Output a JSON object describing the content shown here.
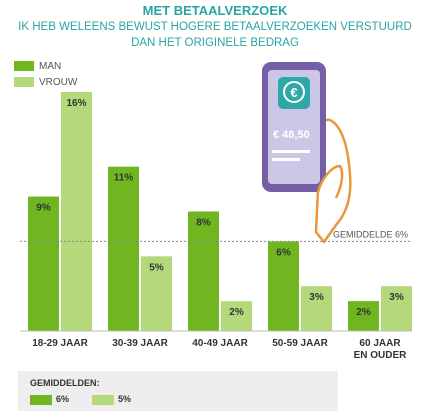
{
  "header": {
    "title": "MET BETAALVERZOEK",
    "subtitle_line1": "IK HEB WELEENS BEWUST HOGERE BETAALVERZOEKEN VERSTUURD",
    "subtitle_line2": "DAN HET ORIGINELE BEDRAG"
  },
  "colors": {
    "man": "#6fb621",
    "vrouw": "#b4d97a",
    "avg_line": "#888888"
  },
  "phone": {
    "amount": "€ 48,50",
    "icon": "euro-speech-bubble-icon"
  },
  "chart_data": {
    "type": "bar",
    "title": "IK HEB WELEENS BEWUST HOGERE BETAALVERZOEKEN VERSTUURD DAN HET ORIGINELE BEDRAG",
    "categories": [
      "18-29 JAAR",
      "30-39 JAAR",
      "40-49 JAAR",
      "50-59 JAAR",
      "60 JAAR EN OUDER"
    ],
    "series": [
      {
        "name": "MAN",
        "values": [
          9,
          11,
          8,
          6,
          2
        ]
      },
      {
        "name": "VROUW",
        "values": [
          16,
          5,
          2,
          3,
          3
        ]
      }
    ],
    "value_suffix": "%",
    "reference_line": {
      "value": 6,
      "label": "GEMIDDELDE 6%"
    },
    "ylim": [
      0,
      17
    ],
    "legend": "top-left",
    "grid": false
  },
  "averages": {
    "title": "GEMIDDELDEN:",
    "man": "6%",
    "vrouw": "5%"
  }
}
